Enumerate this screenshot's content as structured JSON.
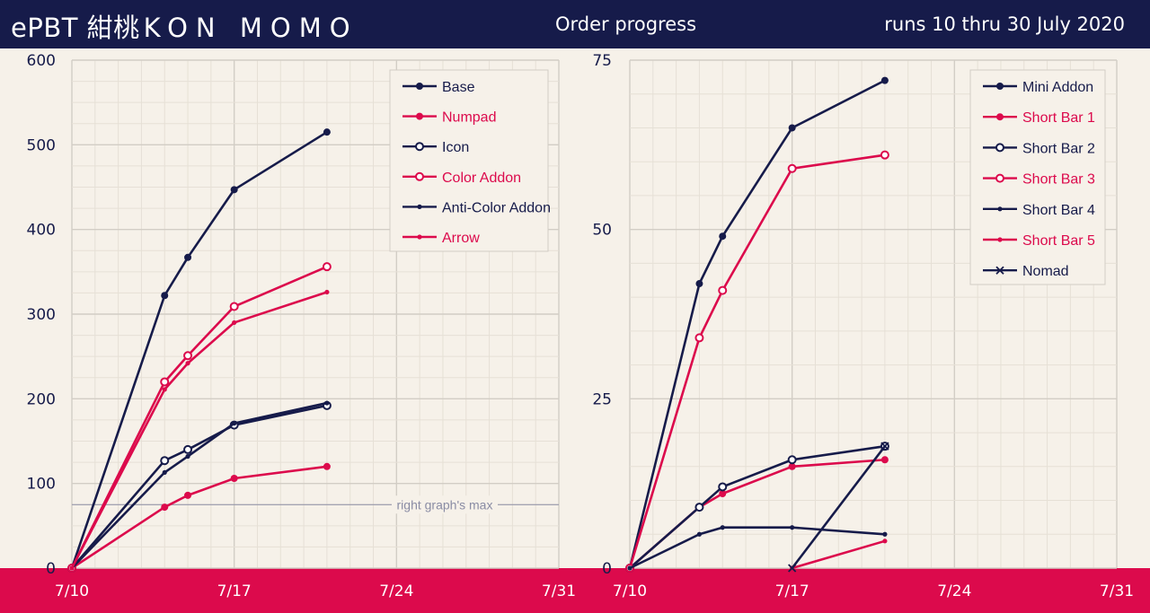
{
  "header": {
    "brand": "ePBT 紺桃",
    "brand_spaced": "KON MOMO",
    "center": "Order progress",
    "right": "runs 10 thru 30 July 2020"
  },
  "colors": {
    "navy": "#161b4a",
    "pink": "#dc0a4c",
    "background": "#f6f1e9",
    "grid_major": "#d2cdc5",
    "grid_minor": "#e6e0d6"
  },
  "chart_data": [
    {
      "type": "line",
      "x_ticks": [
        "7/10",
        "7/17",
        "7/24",
        "7/31"
      ],
      "y_ticks": [
        "0",
        "100",
        "200",
        "300",
        "400",
        "500",
        "600"
      ],
      "ylim": [
        0,
        600
      ],
      "grid": true,
      "legend_position": "top-right",
      "annotation": {
        "label": "right graph's max",
        "y": 75
      },
      "series": [
        {
          "name": "Base",
          "color": "#161b4a",
          "marker": "dot",
          "points": [
            [
              "7/10",
              0
            ],
            [
              "7/14",
              322
            ],
            [
              "7/15",
              367
            ],
            [
              "7/17",
              447
            ],
            [
              "7/21",
              515
            ]
          ]
        },
        {
          "name": "Numpad",
          "color": "#dc0a4c",
          "marker": "dot",
          "points": [
            [
              "7/10",
              0
            ],
            [
              "7/14",
              72
            ],
            [
              "7/15",
              86
            ],
            [
              "7/17",
              106
            ],
            [
              "7/21",
              120
            ]
          ]
        },
        {
          "name": "Icon",
          "color": "#161b4a",
          "marker": "ring",
          "points": [
            [
              "7/10",
              0
            ],
            [
              "7/14",
              127
            ],
            [
              "7/15",
              140
            ],
            [
              "7/17",
              169
            ],
            [
              "7/21",
              192
            ]
          ]
        },
        {
          "name": "Color Addon",
          "color": "#dc0a4c",
          "marker": "ring",
          "points": [
            [
              "7/10",
              0
            ],
            [
              "7/14",
              220
            ],
            [
              "7/15",
              251
            ],
            [
              "7/17",
              309
            ],
            [
              "7/21",
              356
            ]
          ]
        },
        {
          "name": "Anti-Color Addon",
          "color": "#161b4a",
          "marker": "dash",
          "points": [
            [
              "7/10",
              0
            ],
            [
              "7/14",
              113
            ],
            [
              "7/15",
              132
            ],
            [
              "7/17",
              171
            ],
            [
              "7/21",
              195
            ]
          ]
        },
        {
          "name": "Arrow",
          "color": "#dc0a4c",
          "marker": "dash",
          "points": [
            [
              "7/10",
              0
            ],
            [
              "7/14",
              211
            ],
            [
              "7/15",
              242
            ],
            [
              "7/17",
              290
            ],
            [
              "7/21",
              326
            ]
          ]
        }
      ]
    },
    {
      "type": "line",
      "x_ticks": [
        "7/10",
        "7/17",
        "7/24",
        "7/31"
      ],
      "y_ticks": [
        "0",
        "25",
        "50",
        "75"
      ],
      "ylim": [
        0,
        75
      ],
      "grid": true,
      "legend_position": "top-right",
      "series": [
        {
          "name": "Mini Addon",
          "color": "#161b4a",
          "marker": "dot",
          "points": [
            [
              "7/10",
              0
            ],
            [
              "7/13",
              42
            ],
            [
              "7/14",
              49
            ],
            [
              "7/17",
              65
            ],
            [
              "7/21",
              72
            ]
          ]
        },
        {
          "name": "Short Bar 1",
          "color": "#dc0a4c",
          "marker": "dot",
          "points": [
            [
              "7/10",
              0
            ],
            [
              "7/13",
              9
            ],
            [
              "7/14",
              11
            ],
            [
              "7/17",
              15
            ],
            [
              "7/21",
              16
            ]
          ]
        },
        {
          "name": "Short Bar 2",
          "color": "#161b4a",
          "marker": "ring",
          "points": [
            [
              "7/10",
              0
            ],
            [
              "7/13",
              9
            ],
            [
              "7/14",
              12
            ],
            [
              "7/17",
              16
            ],
            [
              "7/21",
              18
            ]
          ]
        },
        {
          "name": "Short Bar 3",
          "color": "#dc0a4c",
          "marker": "ring",
          "points": [
            [
              "7/10",
              0
            ],
            [
              "7/13",
              34
            ],
            [
              "7/14",
              41
            ],
            [
              "7/17",
              59
            ],
            [
              "7/21",
              61
            ]
          ]
        },
        {
          "name": "Short Bar 4",
          "color": "#161b4a",
          "marker": "dash",
          "points": [
            [
              "7/10",
              0
            ],
            [
              "7/13",
              5
            ],
            [
              "7/14",
              6
            ],
            [
              "7/17",
              6
            ],
            [
              "7/21",
              5
            ]
          ]
        },
        {
          "name": "Short Bar 5",
          "color": "#dc0a4c",
          "marker": "dash",
          "points": [
            [
              "7/17",
              0
            ],
            [
              "7/21",
              4
            ]
          ]
        },
        {
          "name": "Nomad",
          "color": "#161b4a",
          "marker": "x",
          "points": [
            [
              "7/17",
              0
            ],
            [
              "7/21",
              18
            ]
          ]
        }
      ]
    }
  ]
}
